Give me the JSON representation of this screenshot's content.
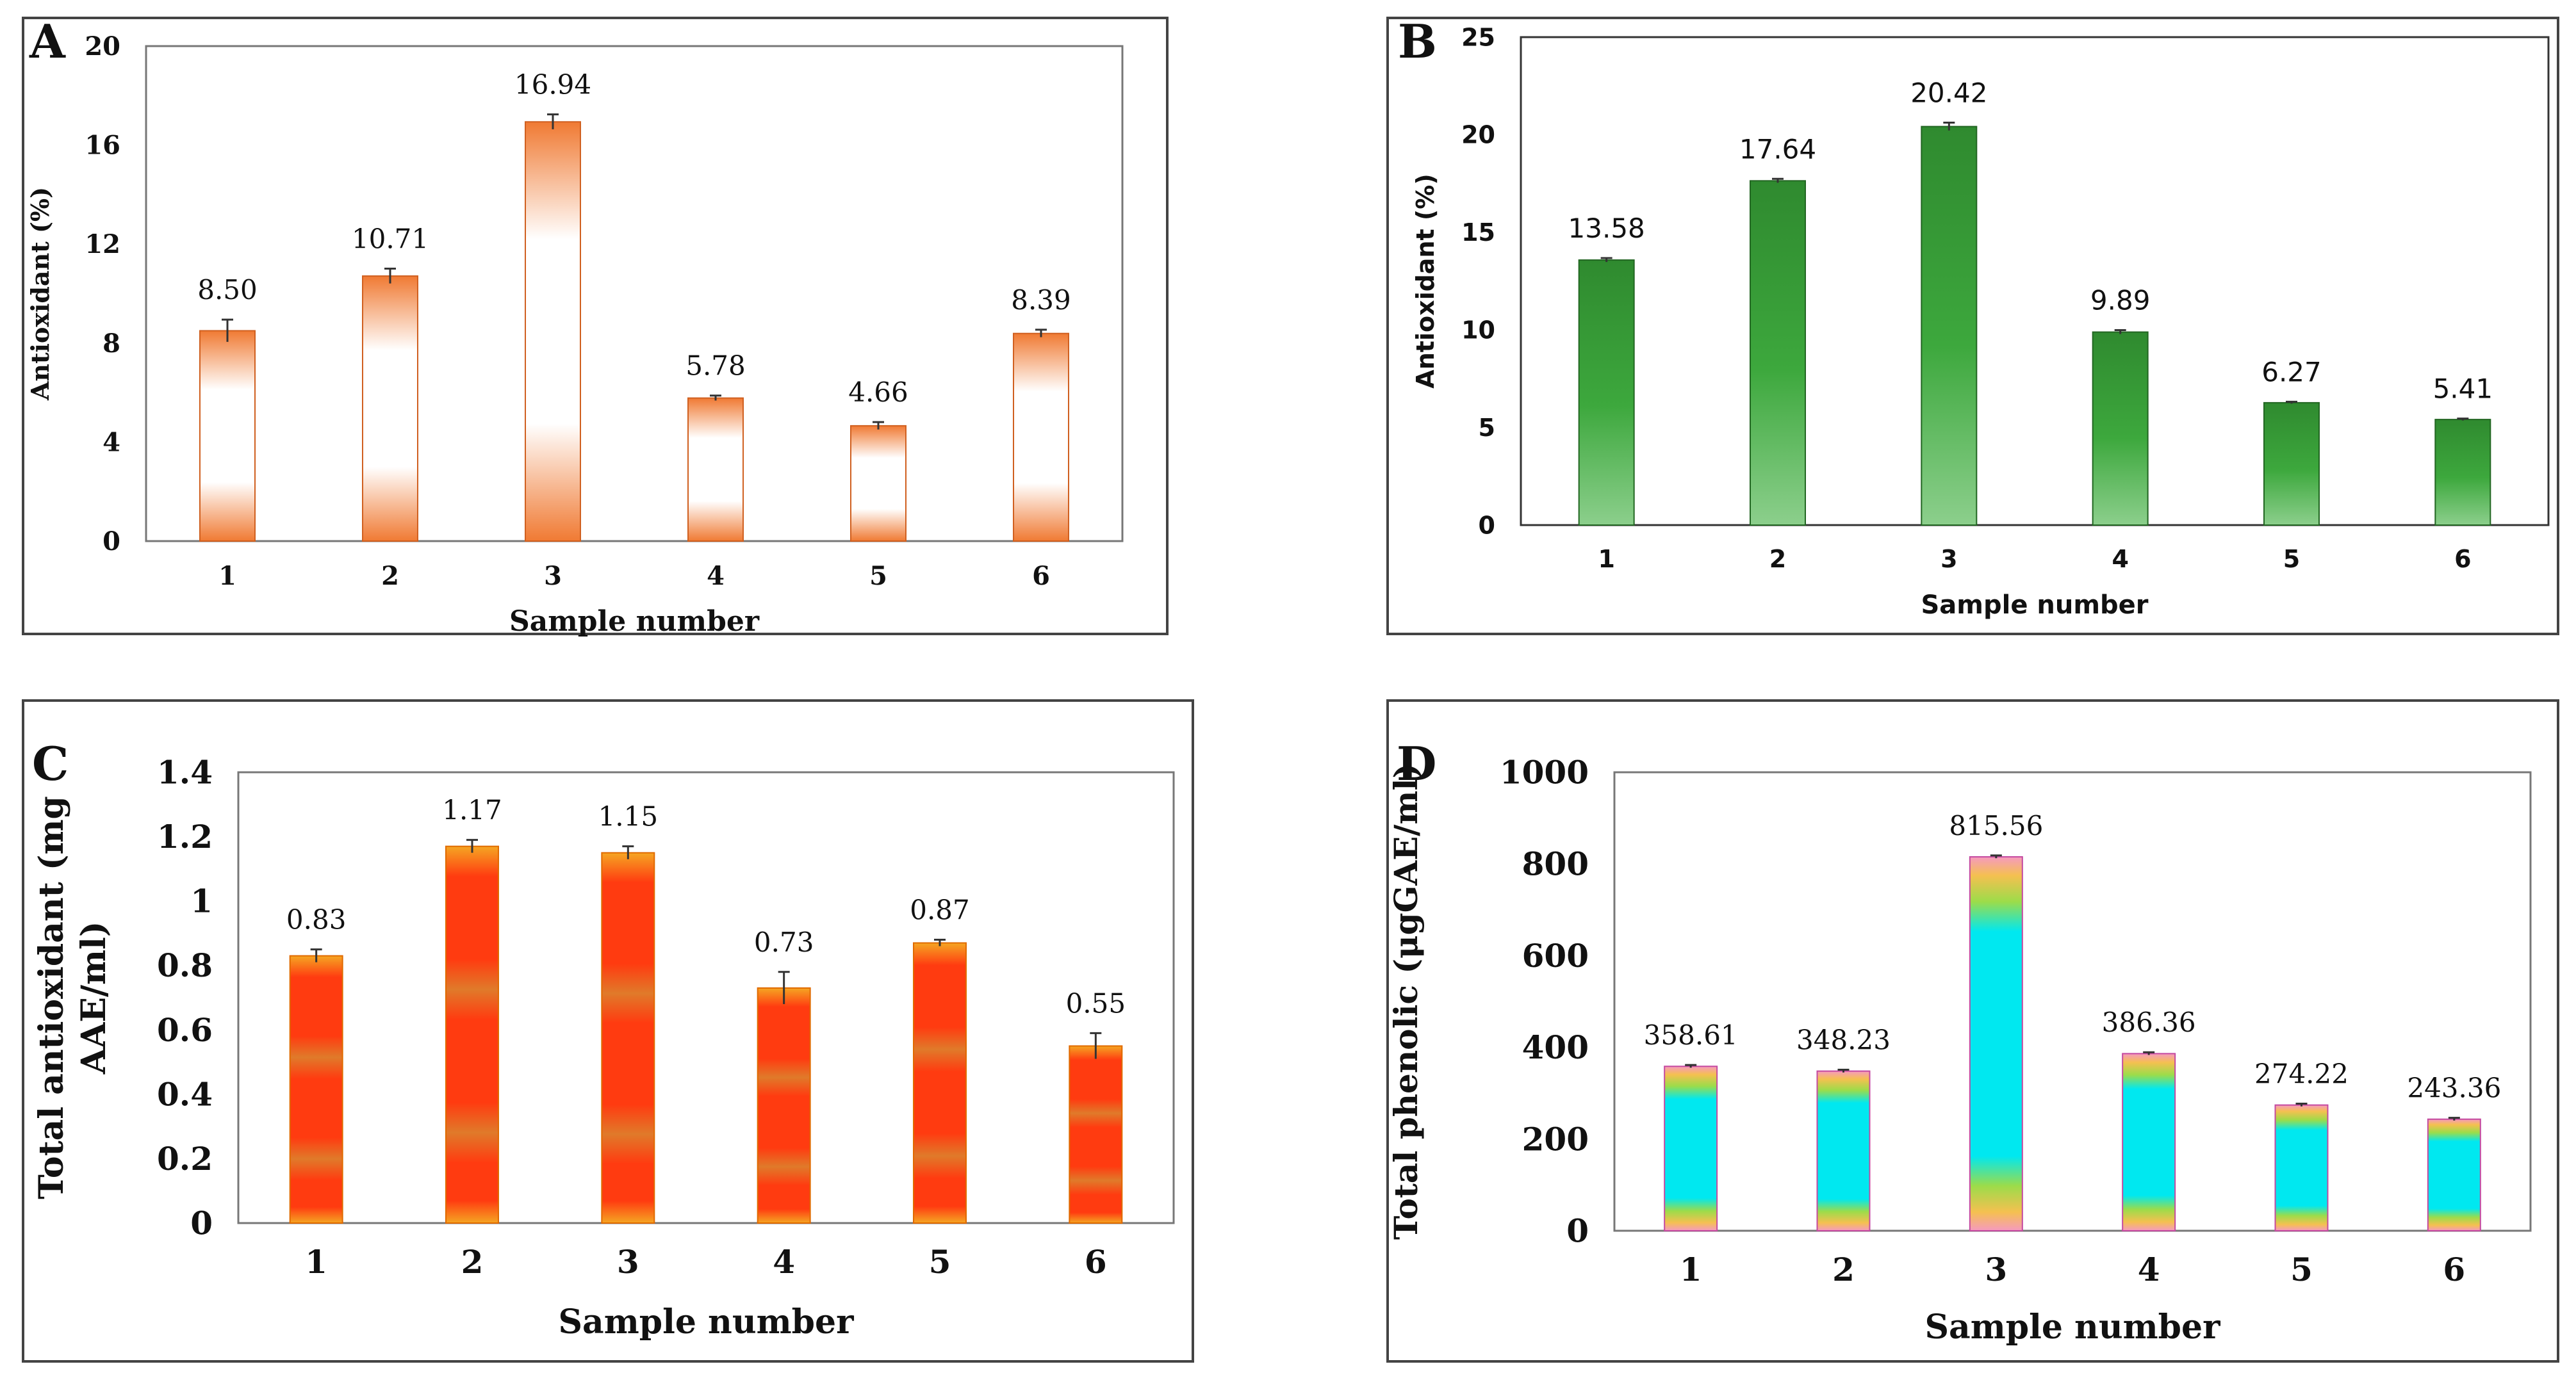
{
  "chart_data": [
    {
      "panel": "A",
      "type": "bar",
      "categories": [
        "1",
        "2",
        "3",
        "4",
        "5",
        "6"
      ],
      "values": [
        8.5,
        10.71,
        16.94,
        5.78,
        4.66,
        8.39
      ],
      "value_labels": [
        "8.50",
        "10.71",
        "16.94",
        "5.78",
        "4.66",
        "8.39"
      ],
      "errors": [
        0.45,
        0.3,
        0.3,
        0.1,
        0.15,
        0.15
      ],
      "xlabel": "Sample number",
      "ylabel": "Antioxidant (%)",
      "ylim": [
        0,
        20
      ],
      "yticks": [
        "0",
        "4",
        "8",
        "12",
        "16",
        "20"
      ],
      "bar_color": "#f07a33",
      "bar_style": "orange-white-gradient"
    },
    {
      "panel": "B",
      "type": "bar",
      "categories": [
        "1",
        "2",
        "3",
        "4",
        "5",
        "6"
      ],
      "values": [
        13.58,
        17.64,
        20.42,
        9.89,
        6.27,
        5.41
      ],
      "value_labels": [
        "13.58",
        "17.64",
        "20.42",
        "9.89",
        "6.27",
        "5.41"
      ],
      "errors": [
        0.1,
        0.1,
        0.2,
        0.1,
        0.05,
        0.05
      ],
      "xlabel": "Sample number",
      "ylabel": "Antioxidant (%)",
      "ylim": [
        0,
        25
      ],
      "yticks": [
        "0",
        "5",
        "10",
        "15",
        "20",
        "25"
      ],
      "bar_color": "#2e8b2e",
      "bar_style": "green-gradient"
    },
    {
      "panel": "C",
      "type": "bar",
      "categories": [
        "1",
        "2",
        "3",
        "4",
        "5",
        "6"
      ],
      "values": [
        0.83,
        1.17,
        1.15,
        0.73,
        0.87,
        0.55
      ],
      "value_labels": [
        "0.83",
        "1.17",
        "1.15",
        "0.73",
        "0.87",
        "0.55"
      ],
      "errors": [
        0.02,
        0.02,
        0.02,
        0.05,
        0.01,
        0.04
      ],
      "xlabel": "Sample number",
      "ylabel": "Total antioxidant (mg AAE/ml)",
      "ylabel_lines": [
        "Total antioxidant (mg",
        "AAE/ml)"
      ],
      "ylim": [
        0,
        1.4
      ],
      "yticks": [
        "0",
        "0.2",
        "0.4",
        "0.6",
        "0.8",
        "1",
        "1.2",
        "1.4"
      ],
      "bar_color": "#ff3b10",
      "bar_style": "red-orange-bands"
    },
    {
      "panel": "D",
      "type": "bar",
      "categories": [
        "1",
        "2",
        "3",
        "4",
        "5",
        "6"
      ],
      "values": [
        358.61,
        348.23,
        815.56,
        386.36,
        274.22,
        243.36
      ],
      "value_labels": [
        "358.61",
        "348.23",
        "815.56",
        "386.36",
        "274.22",
        "243.36"
      ],
      "errors": [
        3,
        3,
        3,
        3,
        3,
        3
      ],
      "xlabel": "Sample number",
      "ylabel": "Total phenolic (μgGAE/ml)",
      "ylim": [
        0,
        1000
      ],
      "yticks": [
        "0",
        "200",
        "400",
        "600",
        "800",
        "1000"
      ],
      "bar_color": "#00e8f0",
      "bar_style": "cyan-rainbow-edges"
    }
  ]
}
